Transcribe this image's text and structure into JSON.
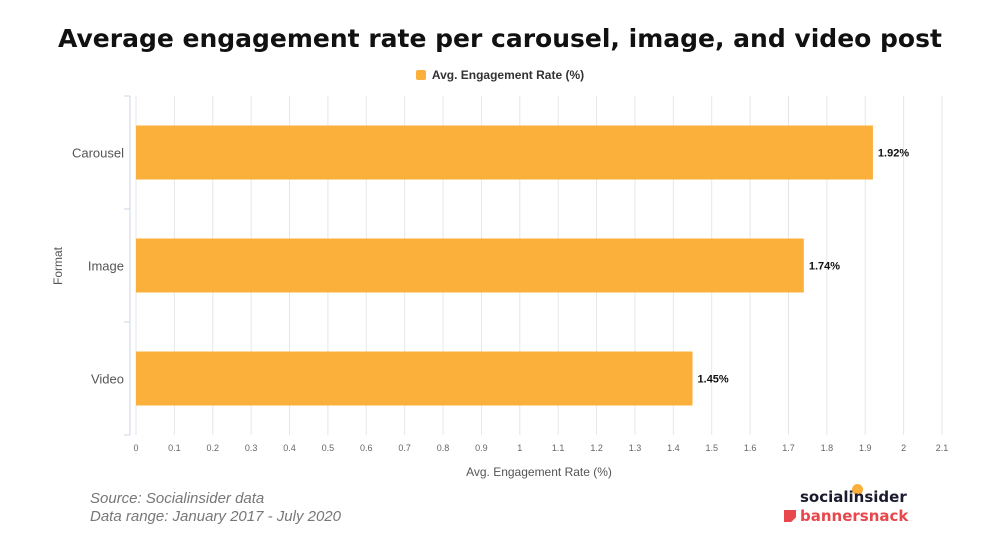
{
  "chart_data": {
    "type": "bar",
    "orientation": "horizontal",
    "title": "Average engagement rate per carousel, image, and video post",
    "categories": [
      "Carousel",
      "Image",
      "Video"
    ],
    "series": [
      {
        "name": "Avg. Engagement Rate (%)",
        "values": [
          1.92,
          1.74,
          1.45
        ],
        "color": "#fbb03b"
      }
    ],
    "data_labels": [
      "1.92%",
      "1.74%",
      "1.45%"
    ],
    "xlabel": "Avg. Engagement Rate (%)",
    "ylabel": "Format",
    "xlim": [
      0,
      2.1
    ],
    "xticks": [
      "0",
      "0.1",
      "0.2",
      "0.3",
      "0.4",
      "0.5",
      "0.6",
      "0.7",
      "0.8",
      "0.9",
      "1",
      "1.1",
      "1.2",
      "1.3",
      "1.4",
      "1.5",
      "1.6",
      "1.7",
      "1.8",
      "1.9",
      "2",
      "2.1"
    ],
    "grid": true,
    "legend": "top-center"
  },
  "footer": {
    "source": "Source: Socialinsider data",
    "range": "Data range: January 2017 - July 2020"
  },
  "logos": {
    "primary": "socialinsider",
    "secondary": "bannersnack"
  }
}
